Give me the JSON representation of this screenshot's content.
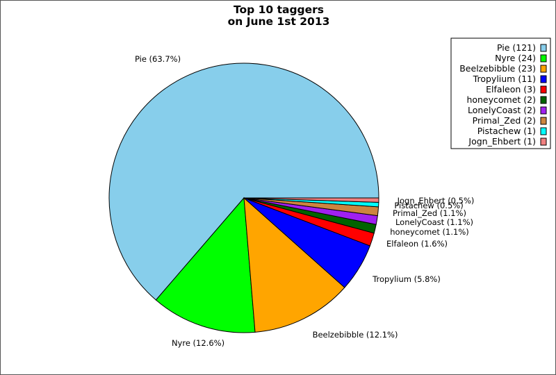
{
  "chart_data": {
    "type": "pie",
    "title": "Top 10 taggers",
    "subtitle": "on June 1st 2013",
    "legend_position": "top-right",
    "slices": [
      {
        "name": "Pie",
        "value": 121,
        "legend": "Pie (121)",
        "label": "Pie (63.7%)",
        "color": "#87ceeb"
      },
      {
        "name": "Nyre",
        "value": 24,
        "legend": "Nyre (24)",
        "label": "Nyre (12.6%)",
        "color": "#00ff00"
      },
      {
        "name": "Beelzebibble",
        "value": 23,
        "legend": "Beelzebibble (23)",
        "label": "Beelzebibble (12.1%)",
        "color": "#ffa500"
      },
      {
        "name": "Tropylium",
        "value": 11,
        "legend": "Tropylium (11)",
        "label": "Tropylium (5.8%)",
        "color": "#0000ff"
      },
      {
        "name": "Elfaleon",
        "value": 3,
        "legend": "Elfaleon (3)",
        "label": "Elfaleon (1.6%)",
        "color": "#ff0000"
      },
      {
        "name": "honeycomet",
        "value": 2,
        "legend": "honeycomet (2)",
        "label": "honeycomet (1.1%)",
        "color": "#006400"
      },
      {
        "name": "LonelyCoast",
        "value": 2,
        "legend": "LonelyCoast (2)",
        "label": "LonelyCoast (1.1%)",
        "color": "#a020f0"
      },
      {
        "name": "Primal_Zed",
        "value": 2,
        "legend": "Primal_Zed (2)",
        "label": "Primal_Zed (1.1%)",
        "color": "#cd853f"
      },
      {
        "name": "Pistachew",
        "value": 1,
        "legend": "Pistachew (1)",
        "label": "Pistachew (0.5%)",
        "color": "#00ffff"
      },
      {
        "name": "Jogn_Ehbert",
        "value": 1,
        "legend": "Jogn_Ehbert (1)",
        "label": "Jogn_Ehbert (0.5%)",
        "color": "#f08080"
      }
    ]
  }
}
